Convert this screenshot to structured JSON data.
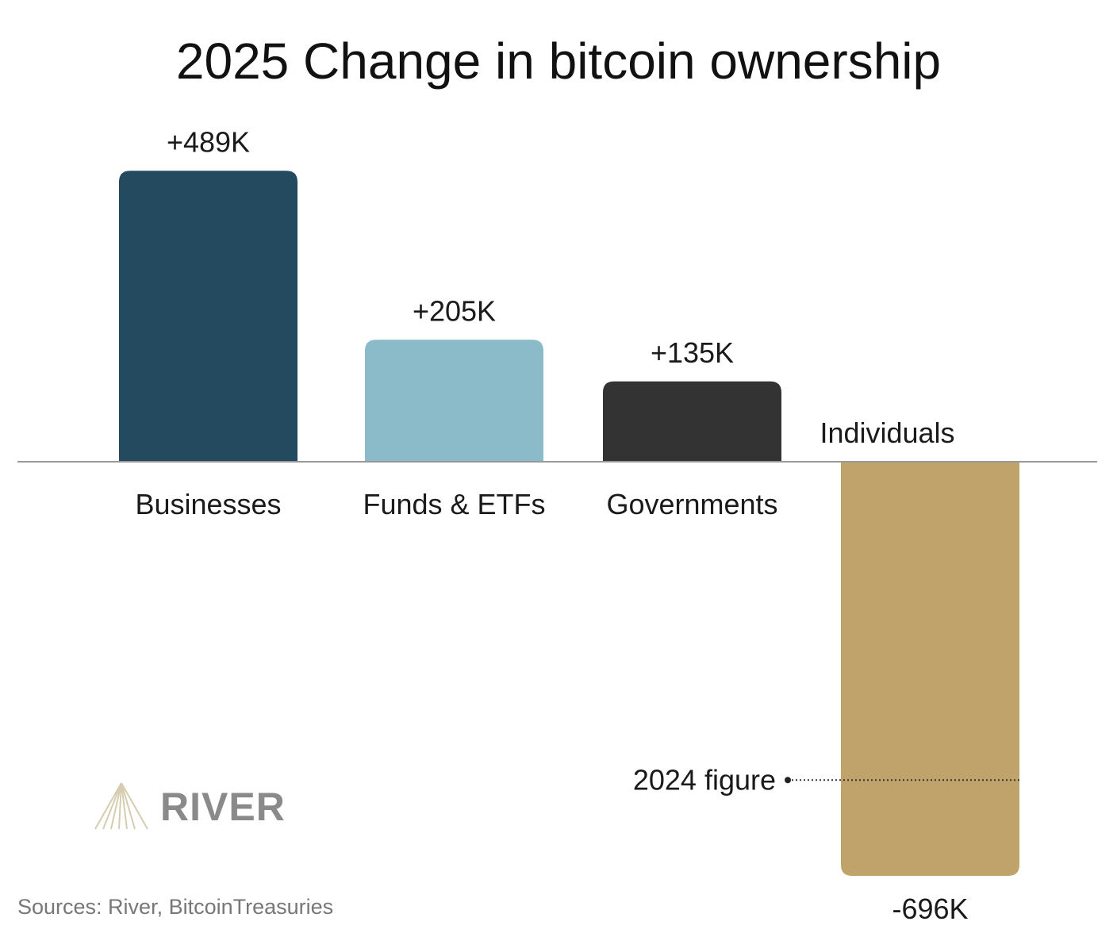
{
  "chart_data": {
    "type": "bar",
    "title": "2025 Change in bitcoin ownership",
    "categories": [
      "Businesses",
      "Funds & ETFs",
      "Governments",
      "Individuals"
    ],
    "values": [
      489,
      205,
      135,
      -696
    ],
    "value_labels": [
      "+489K",
      "+205K",
      "+135K",
      "-696K"
    ],
    "unit": "K BTC",
    "colors": [
      "#234a5f",
      "#8bbac9",
      "#333333",
      "#bfa36b"
    ],
    "annotation": {
      "label": "2024 figure",
      "category": "Individuals",
      "value": -535
    },
    "grid": false,
    "legend": "none"
  },
  "logo": {
    "text": "RIVER"
  },
  "source": "Sources: River, BitcoinTreasuries"
}
